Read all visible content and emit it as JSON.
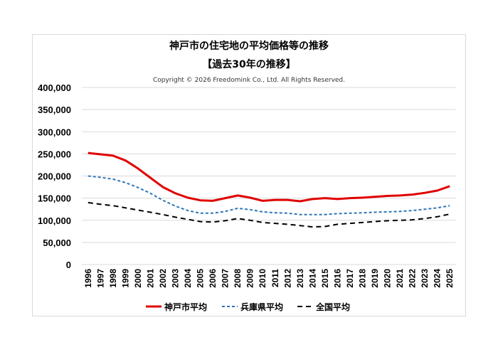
{
  "chart_data": {
    "type": "line",
    "title": "神戸市の住宅地の平均価格等の推移",
    "subtitle": "【過去30年の推移】",
    "copyright": "Copyright © 2026 Freedomink Co., Ltd. All Rights Reserved.",
    "xlabel": "",
    "ylabel": "",
    "ylim": [
      0,
      400000
    ],
    "yticks": [
      0,
      50000,
      100000,
      150000,
      200000,
      250000,
      300000,
      350000,
      400000
    ],
    "ytick_labels": [
      "0",
      "50,000",
      "100,000",
      "150,000",
      "200,000",
      "250,000",
      "300,000",
      "350,000",
      "400,000"
    ],
    "grid": true,
    "legend_placement": "bottom",
    "categories": [
      "1996",
      "1997",
      "1998",
      "1999",
      "2000",
      "2001",
      "2002",
      "2003",
      "2004",
      "2005",
      "2006",
      "2007",
      "2008",
      "2009",
      "2010",
      "2011",
      "2012",
      "2013",
      "2014",
      "2015",
      "2016",
      "2017",
      "2018",
      "2019",
      "2020",
      "2021",
      "2022",
      "2023",
      "2024",
      "2025"
    ],
    "series": [
      {
        "name": "神戸市平均",
        "color": "#e00000",
        "style": "solid",
        "values": [
          252000,
          249000,
          246000,
          235000,
          217000,
          196000,
          175000,
          161000,
          151000,
          145000,
          144000,
          150000,
          156000,
          151000,
          144000,
          146000,
          146000,
          143000,
          148000,
          150000,
          148000,
          150000,
          151000,
          153000,
          155000,
          156000,
          158000,
          162000,
          167000,
          177000
        ]
      },
      {
        "name": "兵庫県平均",
        "color": "#2e75b6",
        "style": "dotted",
        "values": [
          200000,
          197000,
          193000,
          185000,
          174000,
          161000,
          145000,
          132000,
          122000,
          116000,
          116000,
          120000,
          127000,
          124000,
          119000,
          117000,
          116000,
          113000,
          113000,
          113000,
          115000,
          116000,
          117000,
          118000,
          119000,
          120000,
          122000,
          125000,
          128000,
          133000
        ]
      },
      {
        "name": "全国平均",
        "color": "#000000",
        "style": "dashed",
        "values": [
          140000,
          136000,
          133000,
          128000,
          123000,
          118000,
          113000,
          107000,
          102000,
          97000,
          96000,
          99000,
          104000,
          100000,
          95000,
          93000,
          91000,
          88000,
          85000,
          86000,
          91000,
          93000,
          95000,
          97000,
          99000,
          100000,
          101000,
          104000,
          108000,
          114000
        ]
      }
    ]
  }
}
